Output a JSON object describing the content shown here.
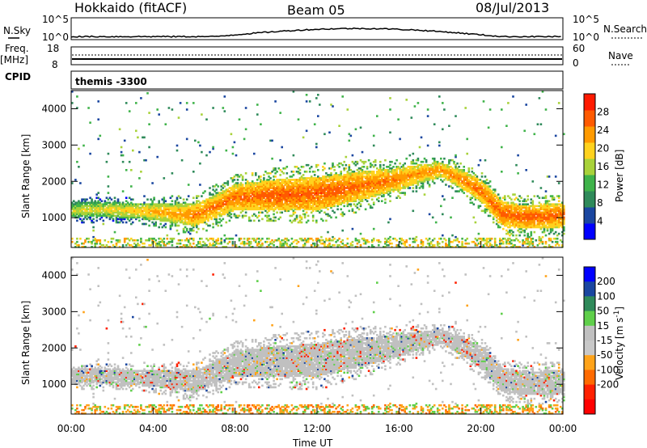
{
  "header": {
    "station": "Hokkaido (fitACF)",
    "beam": "Beam 05",
    "date": "08/Jul/2013"
  },
  "top_panels": {
    "nsky": {
      "label": "N.Sky",
      "right_label": "N.Search",
      "left_ticks": [
        "10^5",
        "10^0"
      ],
      "right_ticks": [
        "10^5",
        "10^0"
      ]
    },
    "freq": {
      "label": "Freq.",
      "unit": "[MHz]",
      "left_ticks": [
        "18",
        "8"
      ],
      "right_ticks": [
        "60",
        "0"
      ],
      "right_label": "Nave"
    },
    "cpid": {
      "label": "CPID",
      "text": "themis -3300"
    }
  },
  "colors": {
    "power": [
      "#0000ff",
      "#1a46a0",
      "#2f8a5a",
      "#3fb34a",
      "#a8d23a",
      "#ffd21e",
      "#ff9a00",
      "#ff5a00",
      "#ff1a00"
    ],
    "velocity": [
      "#0000ff",
      "#1a46a0",
      "#2f8a5a",
      "#5fcf4a",
      "#c0c0c0",
      "#c8c8c8",
      "#ffa31a",
      "#ff6a00",
      "#ff2000",
      "#ff0000"
    ]
  },
  "chart_data": [
    {
      "type": "heatmap",
      "title": "",
      "xlabel": "Time UT",
      "ylabel": "Slant Range [km]",
      "x_ticks": [
        "00:00",
        "04:00",
        "08:00",
        "12:00",
        "16:00",
        "20:00",
        "00:00"
      ],
      "x_hours": [
        0,
        4,
        8,
        12,
        16,
        20,
        24
      ],
      "ylim": [
        180,
        4500
      ],
      "y_ticks": [
        1000,
        2000,
        3000,
        4000
      ],
      "colorbar": {
        "label": "Power [dB]",
        "ticks": [
          4,
          8,
          12,
          16,
          20,
          24,
          28
        ],
        "range": [
          0,
          32
        ]
      },
      "main_echo_band": {
        "hours": [
          0,
          2,
          4,
          6,
          8,
          10,
          12,
          14,
          16,
          17,
          18,
          19,
          20,
          21,
          22,
          24
        ],
        "center_km": [
          1200,
          1200,
          1150,
          1050,
          1550,
          1600,
          1650,
          1850,
          2050,
          2200,
          2300,
          2050,
          1700,
          1100,
          1000,
          1050
        ],
        "width_km": [
          400,
          400,
          450,
          600,
          700,
          850,
          900,
          800,
          600,
          500,
          400,
          500,
          600,
          650,
          650,
          650
        ],
        "power_db": [
          20,
          22,
          24,
          27,
          28,
          29,
          29,
          28,
          27,
          26,
          26,
          27,
          28,
          29,
          29,
          28
        ]
      }
    },
    {
      "type": "heatmap",
      "title": "",
      "xlabel": "Time UT",
      "ylabel": "Slant Range [km]",
      "x_ticks": [
        "00:00",
        "04:00",
        "08:00",
        "12:00",
        "16:00",
        "20:00",
        "00:00"
      ],
      "x_hours": [
        0,
        4,
        8,
        12,
        16,
        20,
        24
      ],
      "ylim": [
        180,
        4500
      ],
      "y_ticks": [
        1000,
        2000,
        3000,
        4000
      ],
      "colorbar": {
        "label": "Velocity [m s^-1]",
        "ticks": [
          200,
          100,
          50,
          15,
          -15,
          -50,
          -100,
          -200
        ]
      }
    }
  ],
  "caption": {
    "x_axis": "Time UT"
  }
}
